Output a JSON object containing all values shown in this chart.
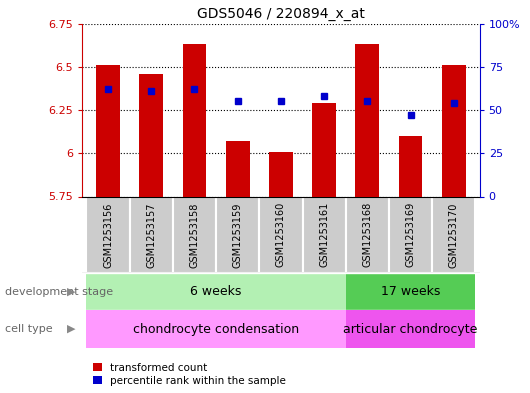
{
  "title": "GDS5046 / 220894_x_at",
  "samples": [
    "GSM1253156",
    "GSM1253157",
    "GSM1253158",
    "GSM1253159",
    "GSM1253160",
    "GSM1253161",
    "GSM1253168",
    "GSM1253169",
    "GSM1253170"
  ],
  "bar_values": [
    6.51,
    6.46,
    6.63,
    6.07,
    6.01,
    6.29,
    6.63,
    6.1,
    6.51
  ],
  "bar_base": 5.75,
  "dot_values": [
    6.37,
    6.36,
    6.37,
    6.3,
    6.3,
    6.33,
    6.3,
    6.22,
    6.29
  ],
  "ylim_left": [
    5.75,
    6.75
  ],
  "ylim_right": [
    0,
    100
  ],
  "yticks_left": [
    5.75,
    6.0,
    6.25,
    6.5,
    6.75
  ],
  "yticks_right": [
    0,
    25,
    50,
    75,
    100
  ],
  "ytick_labels_left": [
    "5.75",
    "6",
    "6.25",
    "6.5",
    "6.75"
  ],
  "ytick_labels_right": [
    "0",
    "25",
    "50",
    "75",
    "100%"
  ],
  "bar_color": "#cc0000",
  "dot_color": "#0000cc",
  "development_stage_label": "development stage",
  "cell_type_label": "cell type",
  "group1_label": "6 weeks",
  "group2_label": "17 weeks",
  "cell_type1_label": "chondrocyte condensation",
  "cell_type2_label": "articular chondrocyte",
  "group1_indices": [
    0,
    5
  ],
  "group2_indices": [
    6,
    8
  ],
  "group1_color": "#b3f0b3",
  "group2_color": "#55cc55",
  "cell_type1_color": "#ff99ff",
  "cell_type2_color": "#ee55ee",
  "sample_bg_color": "#cccccc",
  "legend_bar_label": "transformed count",
  "legend_dot_label": "percentile rank within the sample",
  "bar_width": 0.55
}
